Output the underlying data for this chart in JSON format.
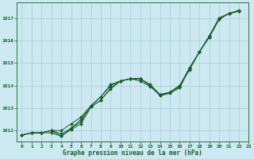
{
  "title": "Graphe pression niveau de la mer (hPa)",
  "background_color": "#cce8f0",
  "grid_color": "#aaccdd",
  "line_color": "#1a5c2a",
  "xlim": [
    -0.5,
    23
  ],
  "ylim": [
    1011.5,
    1017.7
  ],
  "yticks": [
    1012,
    1013,
    1014,
    1015,
    1016,
    1017
  ],
  "xticks": [
    0,
    1,
    2,
    3,
    4,
    5,
    6,
    7,
    8,
    9,
    10,
    11,
    12,
    13,
    14,
    15,
    16,
    17,
    18,
    19,
    20,
    21,
    22,
    23
  ],
  "series": [
    {
      "x": [
        0,
        1,
        2,
        3,
        4,
        5,
        6,
        7,
        8,
        9,
        10,
        11,
        12,
        13,
        14,
        15,
        16,
        17,
        18,
        19,
        20,
        21,
        22
      ],
      "y": [
        1011.8,
        1011.9,
        1011.9,
        1012.0,
        1011.85,
        1012.1,
        1012.5,
        1013.1,
        1013.5,
        1014.05,
        1014.2,
        1014.3,
        1014.3,
        1014.05,
        1013.6,
        1013.7,
        1014.0,
        1014.7,
        1015.5,
        1016.2,
        1017.0,
        1017.2,
        1017.3
      ]
    },
    {
      "x": [
        0,
        1,
        2,
        3,
        4,
        5,
        6,
        7,
        8,
        9,
        10,
        11,
        12,
        13,
        14,
        15,
        16,
        17,
        18,
        19,
        20,
        21,
        22
      ],
      "y": [
        1011.8,
        1011.9,
        1011.9,
        1011.9,
        1011.75,
        1012.1,
        1012.4,
        1013.05,
        1013.35,
        1013.85,
        1014.2,
        1014.3,
        1014.3,
        1014.0,
        1013.55,
        1013.7,
        1013.95,
        1014.75,
        1015.5,
        1016.15,
        1016.95,
        1017.2,
        1017.3
      ]
    },
    {
      "x": [
        0,
        1,
        2,
        3,
        4,
        5,
        6,
        7,
        8,
        9,
        10,
        11,
        12,
        13,
        14,
        15,
        16,
        17,
        18,
        19,
        20,
        21,
        22
      ],
      "y": [
        1011.8,
        1011.9,
        1011.9,
        1012.0,
        1012.0,
        1012.3,
        1012.6,
        1013.1,
        1013.5,
        1014.0,
        1014.2,
        1014.3,
        1014.2,
        1013.95,
        1013.6,
        1013.7,
        1014.0,
        1014.8,
        1015.5,
        1016.2,
        1017.0,
        1017.2,
        1017.3
      ]
    },
    {
      "x": [
        0,
        1,
        2,
        3,
        4,
        5,
        6,
        7,
        8,
        9,
        10,
        11,
        12,
        13,
        14,
        15,
        16,
        17,
        18,
        19,
        20,
        21,
        22
      ],
      "y": [
        1011.8,
        1011.9,
        1011.9,
        1012.0,
        1011.75,
        1012.05,
        1012.3,
        1013.05,
        1013.35,
        1013.9,
        1014.2,
        1014.3,
        1014.3,
        1014.0,
        1013.55,
        1013.65,
        1013.9,
        1014.75,
        1015.5,
        1016.15,
        1016.95,
        1017.2,
        1017.35
      ]
    }
  ],
  "figwidth": 3.2,
  "figheight": 2.0,
  "dpi": 100
}
